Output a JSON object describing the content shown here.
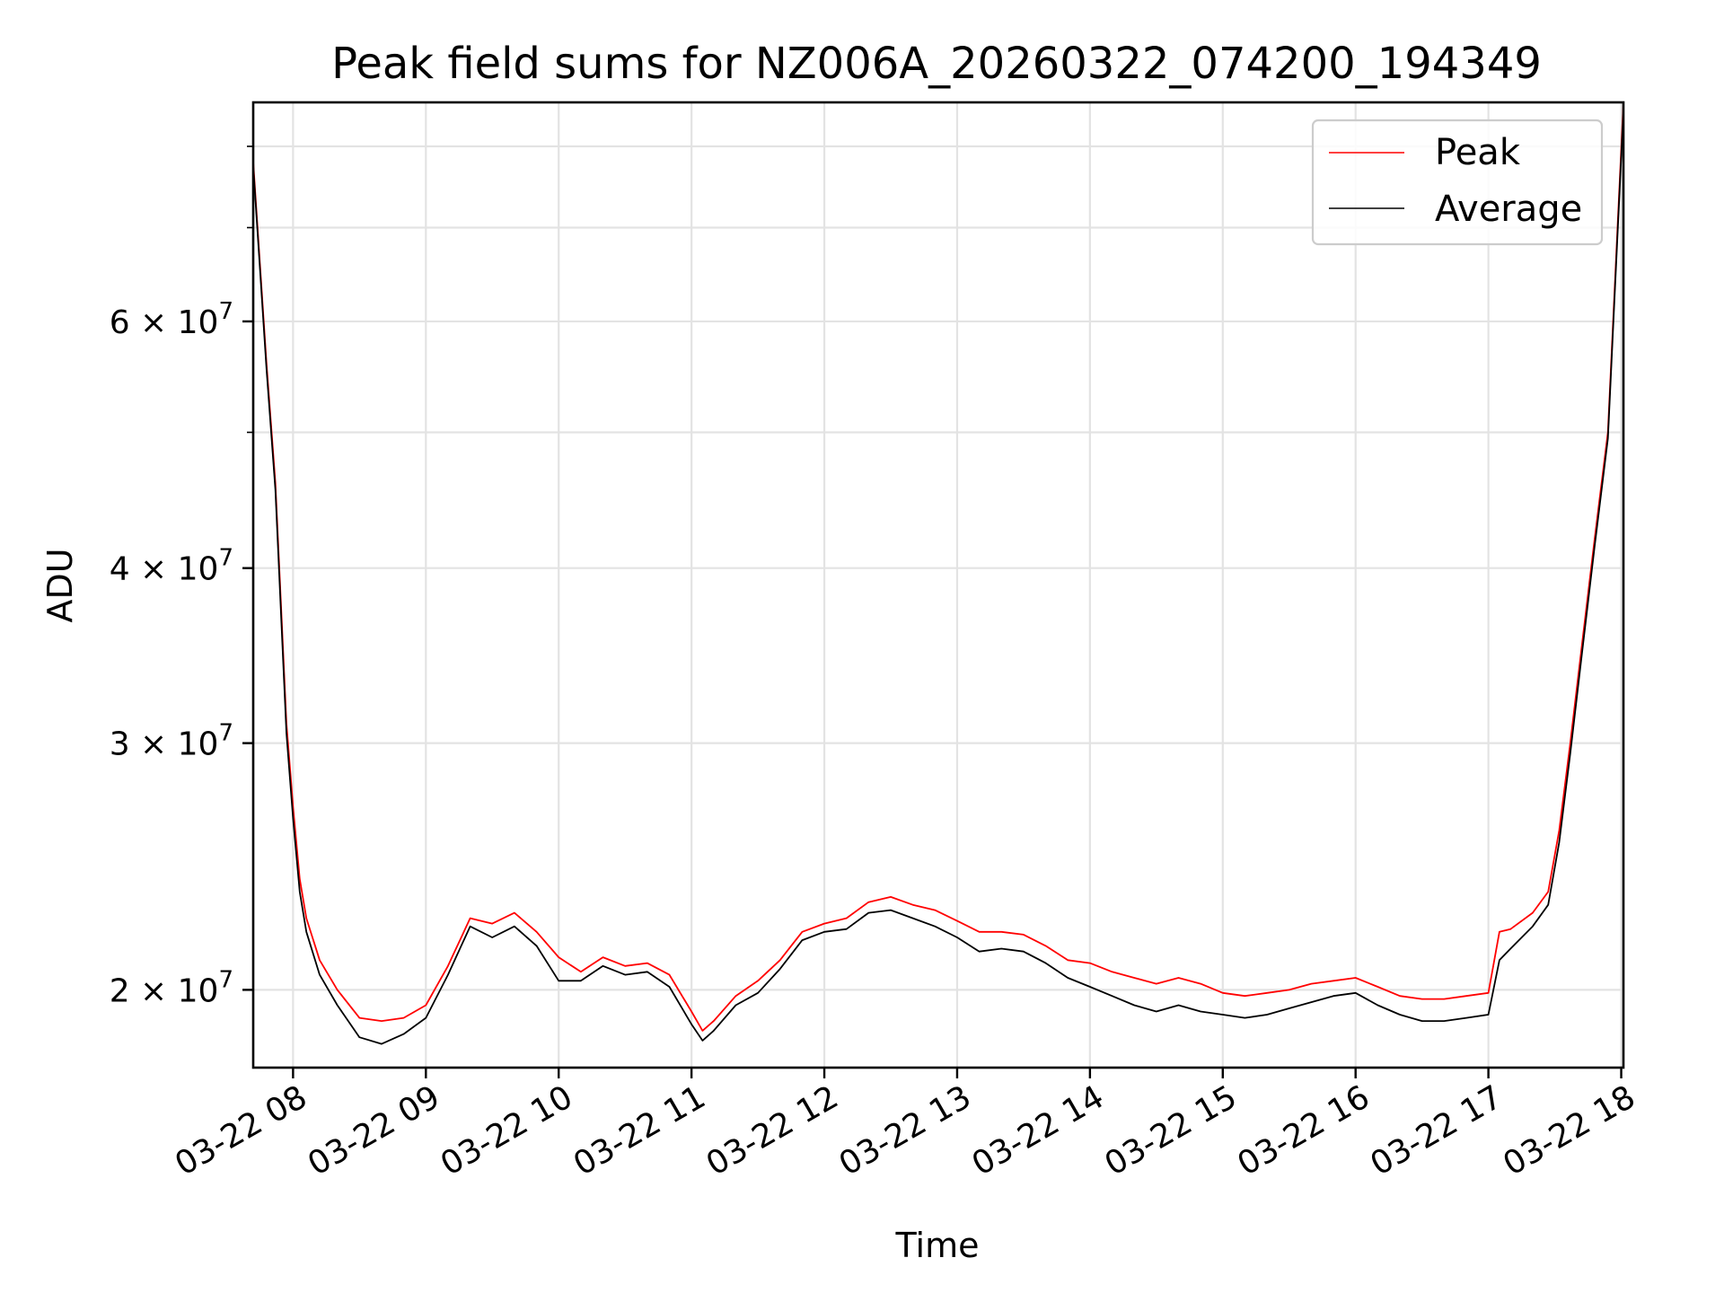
{
  "chart_data": {
    "type": "line",
    "title": "Peak field sums for NZ006A_20260322_074200_194349",
    "xlabel": "Time",
    "ylabel": "ADU",
    "y_scale": "log",
    "ylim": [
      17600000,
      86000000
    ],
    "xlim": [
      "2026-03-22 07:42:00",
      "2026-03-22 18:01:00"
    ],
    "x_ticks": [
      {
        "time": "2026-03-22 08:00",
        "label": "03-22 08"
      },
      {
        "time": "2026-03-22 09:00",
        "label": "03-22 09"
      },
      {
        "time": "2026-03-22 10:00",
        "label": "03-22 10"
      },
      {
        "time": "2026-03-22 11:00",
        "label": "03-22 11"
      },
      {
        "time": "2026-03-22 12:00",
        "label": "03-22 12"
      },
      {
        "time": "2026-03-22 13:00",
        "label": "03-22 13"
      },
      {
        "time": "2026-03-22 14:00",
        "label": "03-22 14"
      },
      {
        "time": "2026-03-22 15:00",
        "label": "03-22 15"
      },
      {
        "time": "2026-03-22 16:00",
        "label": "03-22 16"
      },
      {
        "time": "2026-03-22 17:00",
        "label": "03-22 17"
      },
      {
        "time": "2026-03-22 18:00",
        "label": "03-22 18"
      }
    ],
    "y_ticks_major": [
      {
        "value": 20000000,
        "mantissa": "2",
        "exponent": "7"
      },
      {
        "value": 30000000,
        "mantissa": "3",
        "exponent": "7"
      },
      {
        "value": 40000000,
        "mantissa": "4",
        "exponent": "7"
      },
      {
        "value": 60000000,
        "mantissa": "6",
        "exponent": "7"
      }
    ],
    "y_ticks_minor": [
      50000000,
      70000000,
      80000000
    ],
    "grid": true,
    "legend_position": "top-right",
    "series": [
      {
        "name": "Peak",
        "color": "#ff0000",
        "points": [
          [
            "2026-03-22 07:42",
            78000000
          ],
          [
            "2026-03-22 07:48",
            56000000
          ],
          [
            "2026-03-22 07:52",
            46000000
          ],
          [
            "2026-03-22 07:57",
            31000000
          ],
          [
            "2026-03-22 08:00",
            27000000
          ],
          [
            "2026-03-22 08:03",
            24000000
          ],
          [
            "2026-03-22 08:06",
            22500000
          ],
          [
            "2026-03-22 08:12",
            21000000
          ],
          [
            "2026-03-22 08:20",
            20000000
          ],
          [
            "2026-03-22 08:30",
            19100000
          ],
          [
            "2026-03-22 08:40",
            19000000
          ],
          [
            "2026-03-22 08:50",
            19100000
          ],
          [
            "2026-03-22 09:00",
            19500000
          ],
          [
            "2026-03-22 09:10",
            20800000
          ],
          [
            "2026-03-22 09:20",
            22500000
          ],
          [
            "2026-03-22 09:30",
            22300000
          ],
          [
            "2026-03-22 09:40",
            22700000
          ],
          [
            "2026-03-22 09:50",
            22000000
          ],
          [
            "2026-03-22 10:00",
            21100000
          ],
          [
            "2026-03-22 10:10",
            20600000
          ],
          [
            "2026-03-22 10:20",
            21100000
          ],
          [
            "2026-03-22 10:30",
            20800000
          ],
          [
            "2026-03-22 10:40",
            20900000
          ],
          [
            "2026-03-22 10:50",
            20500000
          ],
          [
            "2026-03-22 11:00",
            19300000
          ],
          [
            "2026-03-22 11:05",
            18700000
          ],
          [
            "2026-03-22 11:10",
            19000000
          ],
          [
            "2026-03-22 11:20",
            19800000
          ],
          [
            "2026-03-22 11:30",
            20300000
          ],
          [
            "2026-03-22 11:40",
            21000000
          ],
          [
            "2026-03-22 11:50",
            22000000
          ],
          [
            "2026-03-22 12:00",
            22300000
          ],
          [
            "2026-03-22 12:10",
            22500000
          ],
          [
            "2026-03-22 12:20",
            23100000
          ],
          [
            "2026-03-22 12:30",
            23300000
          ],
          [
            "2026-03-22 12:40",
            23000000
          ],
          [
            "2026-03-22 12:50",
            22800000
          ],
          [
            "2026-03-22 13:00",
            22400000
          ],
          [
            "2026-03-22 13:10",
            22000000
          ],
          [
            "2026-03-22 13:20",
            22000000
          ],
          [
            "2026-03-22 13:30",
            21900000
          ],
          [
            "2026-03-22 13:40",
            21500000
          ],
          [
            "2026-03-22 13:50",
            21000000
          ],
          [
            "2026-03-22 14:00",
            20900000
          ],
          [
            "2026-03-22 14:10",
            20600000
          ],
          [
            "2026-03-22 14:20",
            20400000
          ],
          [
            "2026-03-22 14:30",
            20200000
          ],
          [
            "2026-03-22 14:40",
            20400000
          ],
          [
            "2026-03-22 14:50",
            20200000
          ],
          [
            "2026-03-22 15:00",
            19900000
          ],
          [
            "2026-03-22 15:10",
            19800000
          ],
          [
            "2026-03-22 15:20",
            19900000
          ],
          [
            "2026-03-22 15:30",
            20000000
          ],
          [
            "2026-03-22 15:40",
            20200000
          ],
          [
            "2026-03-22 15:50",
            20300000
          ],
          [
            "2026-03-22 16:00",
            20400000
          ],
          [
            "2026-03-22 16:10",
            20100000
          ],
          [
            "2026-03-22 16:20",
            19800000
          ],
          [
            "2026-03-22 16:30",
            19700000
          ],
          [
            "2026-03-22 16:40",
            19700000
          ],
          [
            "2026-03-22 16:50",
            19800000
          ],
          [
            "2026-03-22 17:00",
            19900000
          ],
          [
            "2026-03-22 17:05",
            22000000
          ],
          [
            "2026-03-22 17:10",
            22100000
          ],
          [
            "2026-03-22 17:20",
            22700000
          ],
          [
            "2026-03-22 17:27",
            23500000
          ],
          [
            "2026-03-22 17:32",
            26000000
          ],
          [
            "2026-03-22 17:37",
            30000000
          ],
          [
            "2026-03-22 17:42",
            35000000
          ],
          [
            "2026-03-22 17:48",
            42000000
          ],
          [
            "2026-03-22 17:54",
            50000000
          ],
          [
            "2026-03-22 18:01",
            86000000
          ]
        ]
      },
      {
        "name": "Average",
        "color": "#000000",
        "points": [
          [
            "2026-03-22 07:42",
            77500000
          ],
          [
            "2026-03-22 07:48",
            55500000
          ],
          [
            "2026-03-22 07:52",
            45500000
          ],
          [
            "2026-03-22 07:57",
            30500000
          ],
          [
            "2026-03-22 08:00",
            26500000
          ],
          [
            "2026-03-22 08:03",
            23500000
          ],
          [
            "2026-03-22 08:06",
            22000000
          ],
          [
            "2026-03-22 08:12",
            20500000
          ],
          [
            "2026-03-22 08:20",
            19500000
          ],
          [
            "2026-03-22 08:30",
            18500000
          ],
          [
            "2026-03-22 08:40",
            18300000
          ],
          [
            "2026-03-22 08:50",
            18600000
          ],
          [
            "2026-03-22 09:00",
            19100000
          ],
          [
            "2026-03-22 09:10",
            20500000
          ],
          [
            "2026-03-22 09:20",
            22200000
          ],
          [
            "2026-03-22 09:30",
            21800000
          ],
          [
            "2026-03-22 09:40",
            22200000
          ],
          [
            "2026-03-22 09:50",
            21500000
          ],
          [
            "2026-03-22 10:00",
            20300000
          ],
          [
            "2026-03-22 10:10",
            20300000
          ],
          [
            "2026-03-22 10:20",
            20800000
          ],
          [
            "2026-03-22 10:30",
            20500000
          ],
          [
            "2026-03-22 10:40",
            20600000
          ],
          [
            "2026-03-22 10:50",
            20100000
          ],
          [
            "2026-03-22 11:00",
            18900000
          ],
          [
            "2026-03-22 11:05",
            18400000
          ],
          [
            "2026-03-22 11:10",
            18700000
          ],
          [
            "2026-03-22 11:20",
            19500000
          ],
          [
            "2026-03-22 11:30",
            19900000
          ],
          [
            "2026-03-22 11:40",
            20700000
          ],
          [
            "2026-03-22 11:50",
            21700000
          ],
          [
            "2026-03-22 12:00",
            22000000
          ],
          [
            "2026-03-22 12:10",
            22100000
          ],
          [
            "2026-03-22 12:20",
            22700000
          ],
          [
            "2026-03-22 12:30",
            22800000
          ],
          [
            "2026-03-22 12:40",
            22500000
          ],
          [
            "2026-03-22 12:50",
            22200000
          ],
          [
            "2026-03-22 13:00",
            21800000
          ],
          [
            "2026-03-22 13:10",
            21300000
          ],
          [
            "2026-03-22 13:20",
            21400000
          ],
          [
            "2026-03-22 13:30",
            21300000
          ],
          [
            "2026-03-22 13:40",
            20900000
          ],
          [
            "2026-03-22 13:50",
            20400000
          ],
          [
            "2026-03-22 14:00",
            20100000
          ],
          [
            "2026-03-22 14:10",
            19800000
          ],
          [
            "2026-03-22 14:20",
            19500000
          ],
          [
            "2026-03-22 14:30",
            19300000
          ],
          [
            "2026-03-22 14:40",
            19500000
          ],
          [
            "2026-03-22 14:50",
            19300000
          ],
          [
            "2026-03-22 15:00",
            19200000
          ],
          [
            "2026-03-22 15:10",
            19100000
          ],
          [
            "2026-03-22 15:20",
            19200000
          ],
          [
            "2026-03-22 15:30",
            19400000
          ],
          [
            "2026-03-22 15:40",
            19600000
          ],
          [
            "2026-03-22 15:50",
            19800000
          ],
          [
            "2026-03-22 16:00",
            19900000
          ],
          [
            "2026-03-22 16:10",
            19500000
          ],
          [
            "2026-03-22 16:20",
            19200000
          ],
          [
            "2026-03-22 16:30",
            19000000
          ],
          [
            "2026-03-22 16:40",
            19000000
          ],
          [
            "2026-03-22 16:50",
            19100000
          ],
          [
            "2026-03-22 17:00",
            19200000
          ],
          [
            "2026-03-22 17:05",
            21000000
          ],
          [
            "2026-03-22 17:10",
            21400000
          ],
          [
            "2026-03-22 17:20",
            22200000
          ],
          [
            "2026-03-22 17:27",
            23000000
          ],
          [
            "2026-03-22 17:32",
            25500000
          ],
          [
            "2026-03-22 17:37",
            29500000
          ],
          [
            "2026-03-22 17:42",
            34500000
          ],
          [
            "2026-03-22 17:48",
            41500000
          ],
          [
            "2026-03-22 17:54",
            49500000
          ],
          [
            "2026-03-22 18:01",
            85000000
          ]
        ]
      }
    ]
  }
}
